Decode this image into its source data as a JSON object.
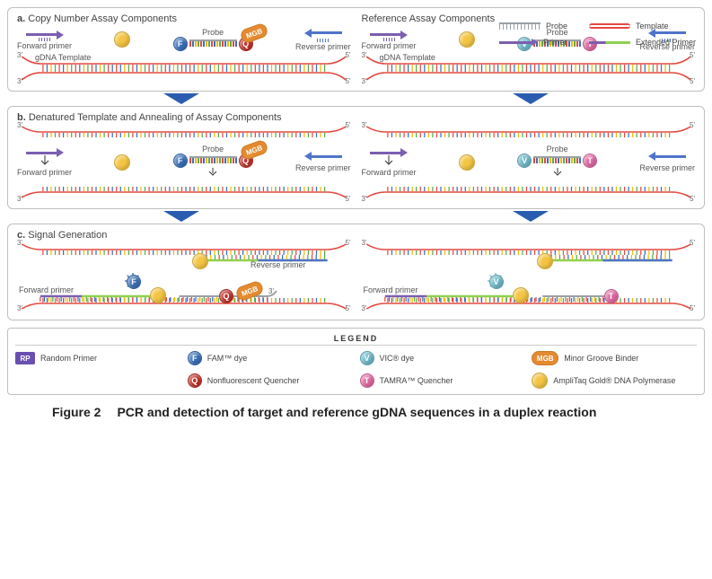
{
  "colors": {
    "panel_border": "#bfbfbf",
    "text": "#444444",
    "primer_purple": "#7b5fb0",
    "primer_blue": "#4f74c9",
    "template_red": "#e4483f",
    "probe_grey": "#9aa0a6",
    "extended_green": "#8fd14f",
    "arrow_blue": "#2a5db0",
    "fam_blue": "#3a6fb7",
    "q_red": "#c0322a",
    "vic_teal": "#6fb9c8",
    "tamra_pink": "#e06aa4",
    "mgb_orange": "#e48a2f",
    "polymerase_yellow": "#f4c542",
    "rp_purple": "#6a4fb0",
    "tick_colors": [
      "#e4483f",
      "#3a6fb7",
      "#f2b705",
      "#5aa84f",
      "#e4483f",
      "#3a6fb7",
      "#f2b705",
      "#5aa84f",
      "#e4483f",
      "#3a6fb7",
      "#f2b705",
      "#5aa84f",
      "#e4483f",
      "#3a6fb7",
      "#f2b705",
      "#5aa84f",
      "#e4483f",
      "#3a6fb7"
    ]
  },
  "labels": {
    "forward_primer": "Forward primer",
    "reverse_primer": "Reverse primer",
    "probe": "Probe",
    "gdna_template": "gDNA Template",
    "three_prime": "3'",
    "five_prime": "5'"
  },
  "panels": {
    "a": {
      "letter": "a.",
      "left_title": "Copy Number Assay Components",
      "right_title": "Reference Assay Components"
    },
    "b": {
      "letter": "b.",
      "title": "Denatured Template and Annealing of Assay Components"
    },
    "c": {
      "letter": "c.",
      "title": "Signal Generation"
    }
  },
  "molecules": {
    "F": {
      "letter": "F",
      "bg": "#3a6fb7",
      "name": "FAM™ dye"
    },
    "Q": {
      "letter": "Q",
      "bg": "#c0322a",
      "name": "Nonfluorescent Quencher"
    },
    "V": {
      "letter": "V",
      "bg": "#6fb9c8",
      "name": "VIC® dye"
    },
    "T": {
      "letter": "T",
      "bg": "#e06aa4",
      "name": "TAMRA™ Quencher"
    },
    "MGB": {
      "letter": "MGB",
      "bg": "#e48a2f",
      "name": "Minor Groove Binder"
    },
    "Pol": {
      "letter": "",
      "bg": "#f4c542",
      "name": "AmpliTaq Gold® DNA Polymerase"
    },
    "RP": {
      "letter": "RP",
      "bg": "#6a4fb0",
      "name": "Random Primer"
    }
  },
  "legend": {
    "title": "LEGEND",
    "probe_label": "Probe",
    "template_label": "Template",
    "primer_label": "Primer",
    "extended_primer_label": "Extended Primer"
  },
  "caption": {
    "fig": "Figure 2",
    "text": "PCR and detection of target and reference gDNA sequences in a duplex reaction"
  }
}
